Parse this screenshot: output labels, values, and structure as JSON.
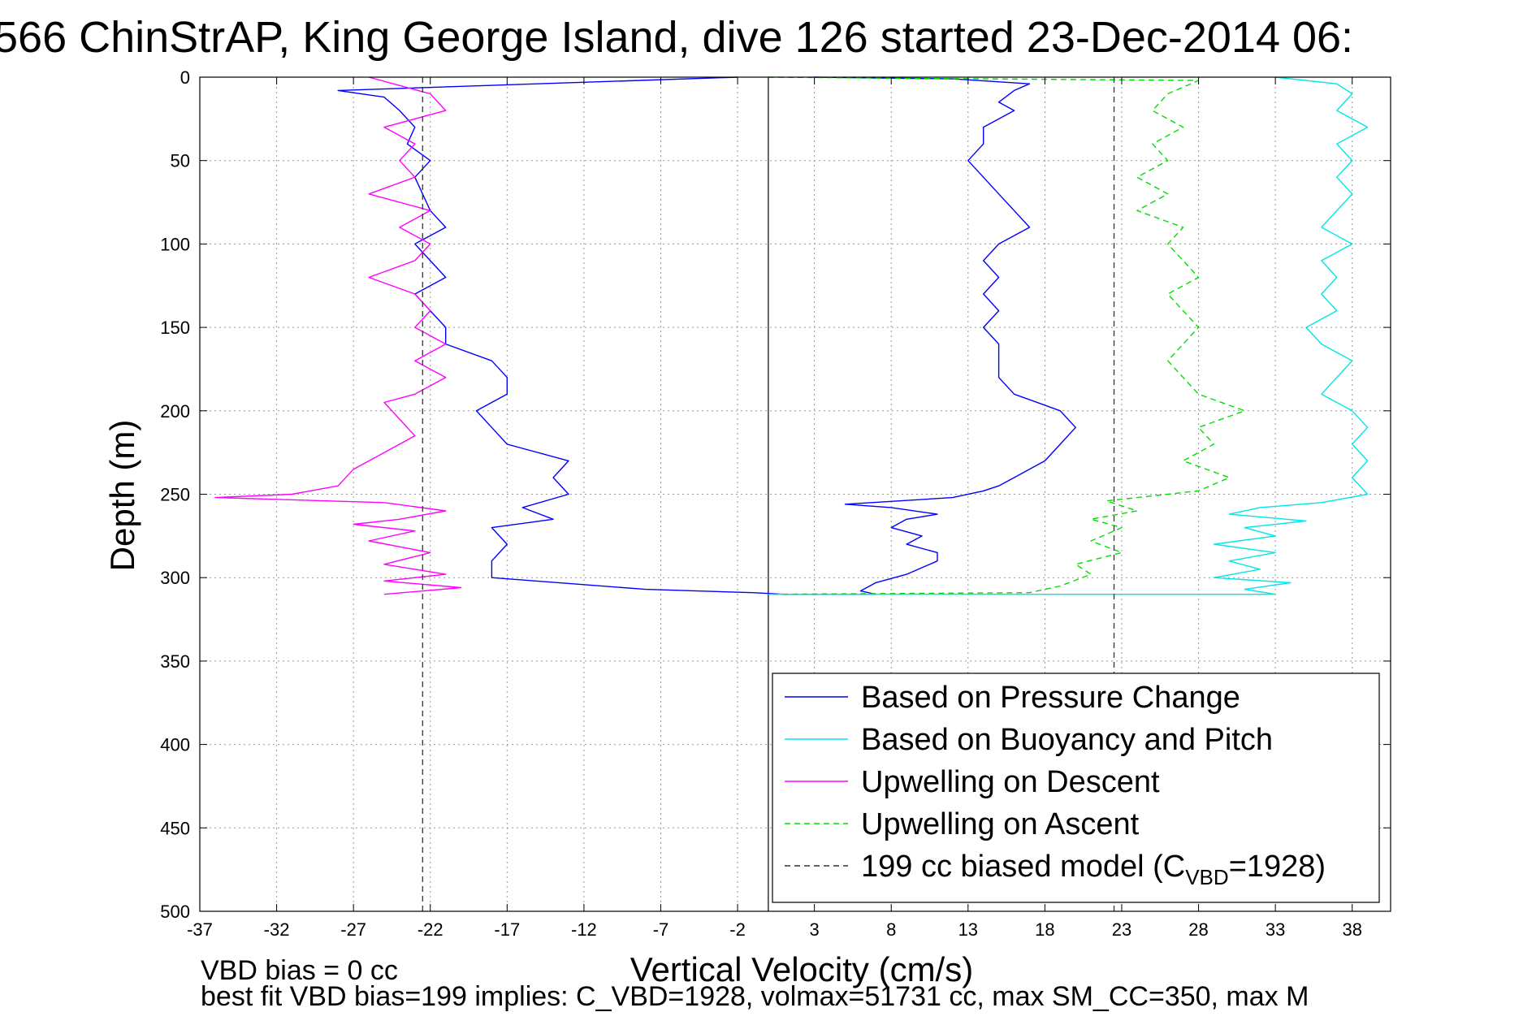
{
  "chart_data": {
    "type": "line",
    "title": "566 ChinStrAP, King George Island, dive 126 started 23-Dec-2014 06:",
    "xlabel": "Vertical Velocity (cm/s)",
    "ylabel": "Depth (m)",
    "xlim": [
      -37,
      40.5
    ],
    "ylim": [
      0,
      500
    ],
    "y_reversed": true,
    "grid": true,
    "xticks": [
      -37,
      -32,
      -27,
      -22,
      -17,
      -12,
      -7,
      -2,
      3,
      8,
      13,
      18,
      23,
      28,
      33,
      38
    ],
    "yticks": [
      0,
      50,
      100,
      150,
      200,
      250,
      300,
      350,
      400,
      450,
      500
    ],
    "zero_line_x": 0,
    "series": [
      {
        "name": "Based on Pressure Change",
        "color": "#0000ff",
        "style": "solid",
        "points": [
          [
            -2,
            0
          ],
          [
            -28,
            8
          ],
          [
            -25,
            12
          ],
          [
            -24,
            20
          ],
          [
            -23,
            30
          ],
          [
            -23.5,
            40
          ],
          [
            -22,
            50
          ],
          [
            -23,
            60
          ],
          [
            -22,
            80
          ],
          [
            -21,
            90
          ],
          [
            -23,
            100
          ],
          [
            -22,
            110
          ],
          [
            -21,
            120
          ],
          [
            -23,
            130
          ],
          [
            -22,
            140
          ],
          [
            -21,
            150
          ],
          [
            -21,
            160
          ],
          [
            -18,
            170
          ],
          [
            -17,
            180
          ],
          [
            -17,
            190
          ],
          [
            -19,
            200
          ],
          [
            -18,
            210
          ],
          [
            -17,
            220
          ],
          [
            -13,
            230
          ],
          [
            -14,
            240
          ],
          [
            -13,
            250
          ],
          [
            -16,
            258
          ],
          [
            -14,
            265
          ],
          [
            -18,
            270
          ],
          [
            -17,
            280
          ],
          [
            -18,
            290
          ],
          [
            -18,
            300
          ],
          [
            -8,
            307
          ],
          [
            -1,
            309
          ],
          [
            1,
            310
          ],
          [
            7,
            310
          ],
          [
            6,
            308
          ],
          [
            7,
            303
          ],
          [
            9,
            298
          ],
          [
            11,
            290
          ],
          [
            11,
            285
          ],
          [
            9,
            280
          ],
          [
            10,
            275
          ],
          [
            8,
            270
          ],
          [
            9,
            265
          ],
          [
            11,
            262
          ],
          [
            8,
            258
          ],
          [
            5,
            256
          ],
          [
            12,
            252
          ],
          [
            14,
            248
          ],
          [
            15,
            245
          ],
          [
            16,
            240
          ],
          [
            18,
            230
          ],
          [
            19,
            220
          ],
          [
            20,
            210
          ],
          [
            19,
            200
          ],
          [
            16,
            190
          ],
          [
            15,
            180
          ],
          [
            15,
            170
          ],
          [
            15,
            160
          ],
          [
            14,
            150
          ],
          [
            15,
            140
          ],
          [
            14,
            130
          ],
          [
            15,
            120
          ],
          [
            14,
            110
          ],
          [
            15,
            100
          ],
          [
            17,
            90
          ],
          [
            16,
            80
          ],
          [
            15,
            70
          ],
          [
            14,
            60
          ],
          [
            13,
            50
          ],
          [
            14,
            40
          ],
          [
            14,
            30
          ],
          [
            16,
            20
          ],
          [
            15,
            15
          ],
          [
            16,
            8
          ],
          [
            17,
            4
          ],
          [
            12,
            1
          ],
          [
            3,
            0
          ]
        ]
      },
      {
        "name": "Based on Buoyancy and Pitch",
        "color": "#00e6e6",
        "style": "solid",
        "points": [
          [
            33,
            0
          ],
          [
            37,
            4
          ],
          [
            38,
            10
          ],
          [
            37,
            20
          ],
          [
            39,
            30
          ],
          [
            37,
            40
          ],
          [
            38,
            50
          ],
          [
            37,
            60
          ],
          [
            38,
            70
          ],
          [
            37,
            80
          ],
          [
            36,
            90
          ],
          [
            38,
            100
          ],
          [
            36,
            110
          ],
          [
            37,
            120
          ],
          [
            36,
            130
          ],
          [
            37,
            140
          ],
          [
            35,
            150
          ],
          [
            36,
            160
          ],
          [
            38,
            170
          ],
          [
            37,
            180
          ],
          [
            36,
            190
          ],
          [
            38,
            200
          ],
          [
            39,
            210
          ],
          [
            38,
            220
          ],
          [
            39,
            230
          ],
          [
            38,
            240
          ],
          [
            39,
            250
          ],
          [
            36,
            255
          ],
          [
            32,
            258
          ],
          [
            30,
            262
          ],
          [
            35,
            266
          ],
          [
            31,
            270
          ],
          [
            33,
            275
          ],
          [
            29,
            280
          ],
          [
            33,
            285
          ],
          [
            30,
            290
          ],
          [
            32,
            295
          ],
          [
            29,
            300
          ],
          [
            34,
            303
          ],
          [
            31,
            307
          ],
          [
            33,
            310
          ],
          [
            0,
            310
          ]
        ]
      },
      {
        "name": "Upwelling on Descent",
        "color": "#ff00ff",
        "style": "solid",
        "points": [
          [
            -26,
            0
          ],
          [
            -22,
            10
          ],
          [
            -21,
            20
          ],
          [
            -25,
            30
          ],
          [
            -23,
            40
          ],
          [
            -24,
            50
          ],
          [
            -23,
            60
          ],
          [
            -26,
            70
          ],
          [
            -22,
            80
          ],
          [
            -24,
            90
          ],
          [
            -22,
            100
          ],
          [
            -23,
            110
          ],
          [
            -26,
            120
          ],
          [
            -23,
            130
          ],
          [
            -22,
            140
          ],
          [
            -23,
            150
          ],
          [
            -21,
            160
          ],
          [
            -23,
            170
          ],
          [
            -21,
            180
          ],
          [
            -23,
            190
          ],
          [
            -25,
            195
          ],
          [
            -24,
            205
          ],
          [
            -23,
            215
          ],
          [
            -25,
            225
          ],
          [
            -27,
            235
          ],
          [
            -28,
            245
          ],
          [
            -31,
            250
          ],
          [
            -36,
            252
          ],
          [
            -25,
            255
          ],
          [
            -21,
            260
          ],
          [
            -24,
            265
          ],
          [
            -27,
            268
          ],
          [
            -23,
            272
          ],
          [
            -26,
            278
          ],
          [
            -22,
            285
          ],
          [
            -25,
            292
          ],
          [
            -21,
            298
          ],
          [
            -25,
            302
          ],
          [
            -20,
            306
          ],
          [
            -25,
            310
          ]
        ]
      },
      {
        "name": "Upwelling on Ascent",
        "color": "#00dd00",
        "style": "dashed",
        "points": [
          [
            0,
            0
          ],
          [
            28,
            2
          ],
          [
            26,
            10
          ],
          [
            25,
            20
          ],
          [
            27,
            30
          ],
          [
            25,
            40
          ],
          [
            26,
            50
          ],
          [
            24,
            60
          ],
          [
            26,
            70
          ],
          [
            24,
            80
          ],
          [
            27,
            90
          ],
          [
            26,
            100
          ],
          [
            27,
            110
          ],
          [
            28,
            120
          ],
          [
            26,
            130
          ],
          [
            27,
            140
          ],
          [
            28,
            150
          ],
          [
            27,
            160
          ],
          [
            26,
            170
          ],
          [
            27,
            180
          ],
          [
            28,
            190
          ],
          [
            31,
            200
          ],
          [
            28,
            210
          ],
          [
            29,
            220
          ],
          [
            27,
            230
          ],
          [
            30,
            240
          ],
          [
            28,
            248
          ],
          [
            22,
            254
          ],
          [
            24,
            260
          ],
          [
            21,
            265
          ],
          [
            23,
            270
          ],
          [
            21,
            278
          ],
          [
            23,
            285
          ],
          [
            20,
            292
          ],
          [
            21,
            298
          ],
          [
            19,
            305
          ],
          [
            17,
            309
          ],
          [
            0,
            310
          ]
        ]
      },
      {
        "name": "199 cc biased model (C_VBD=1928)",
        "color": "#333333",
        "style": "dashed",
        "segments": [
          [
            [
              -22.5,
              0
            ],
            [
              -22.5,
              500
            ]
          ],
          [
            [
              22.5,
              0
            ],
            [
              22.5,
              500
            ]
          ]
        ]
      }
    ],
    "legend": {
      "placement": "bottom-right",
      "entries": [
        {
          "label": "Based on Pressure Change",
          "color": "#0000ff",
          "style": "solid"
        },
        {
          "label": "Based on Buoyancy and Pitch",
          "color": "#00e6e6",
          "style": "solid"
        },
        {
          "label": "Upwelling on Descent",
          "color": "#ff00ff",
          "style": "solid"
        },
        {
          "label": "Upwelling on Ascent",
          "color": "#00dd00",
          "style": "dashed"
        },
        {
          "label": "199 cc biased model (C",
          "sub": "VBD",
          "tail": "=1928)",
          "color": "#333333",
          "style": "dashed"
        }
      ]
    },
    "annotations": [
      "VBD bias = 0 cc",
      "best fit VBD bias=199 implies: C_VBD=1928, volmax=51731 cc, max SM_CC=350, max M"
    ]
  }
}
